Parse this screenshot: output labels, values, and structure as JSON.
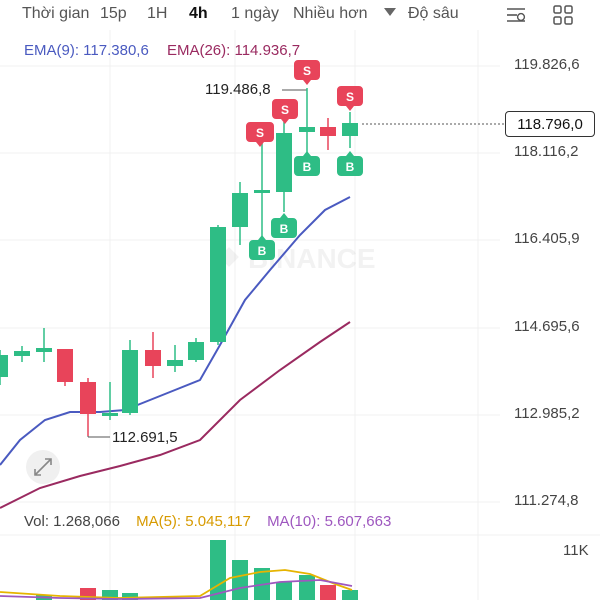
{
  "toolbar": {
    "timeframes": [
      "Thời gian",
      "15p",
      "1H",
      "4h",
      "1 ngày",
      "Nhiều hơn"
    ],
    "active_timeframe": "4h",
    "depth_label": "Độ sâu",
    "icons": [
      "indicator-settings-icon",
      "grid-layout-icon"
    ]
  },
  "indicators": {
    "ema9": "EMA(9): 117.380,6",
    "ema26": "EMA(26): 114.936,7"
  },
  "price_axis": [
    "119.826,6",
    "118.116,2",
    "116.405,9",
    "114.695,6",
    "112.985,2",
    "111.274,8"
  ],
  "current_price": "118.796,0",
  "annotations": {
    "high": "119.486,8",
    "low": "112.691,5"
  },
  "watermark": "BINANCE",
  "volume": {
    "vol": "Vol: 1.268,066",
    "ma5": "MA(5): 5.045,117",
    "ma10": "MA(10): 5.607,663",
    "axis_label": "11K"
  },
  "markers": {
    "sell": "S",
    "buy": "B"
  },
  "colors": {
    "up": "#2ebd85",
    "down": "#e8445a",
    "ema9": "#4a5ac0",
    "ema26": "#9a2a60",
    "ma5": "#e6b400",
    "ma10": "#9e57bf"
  }
}
